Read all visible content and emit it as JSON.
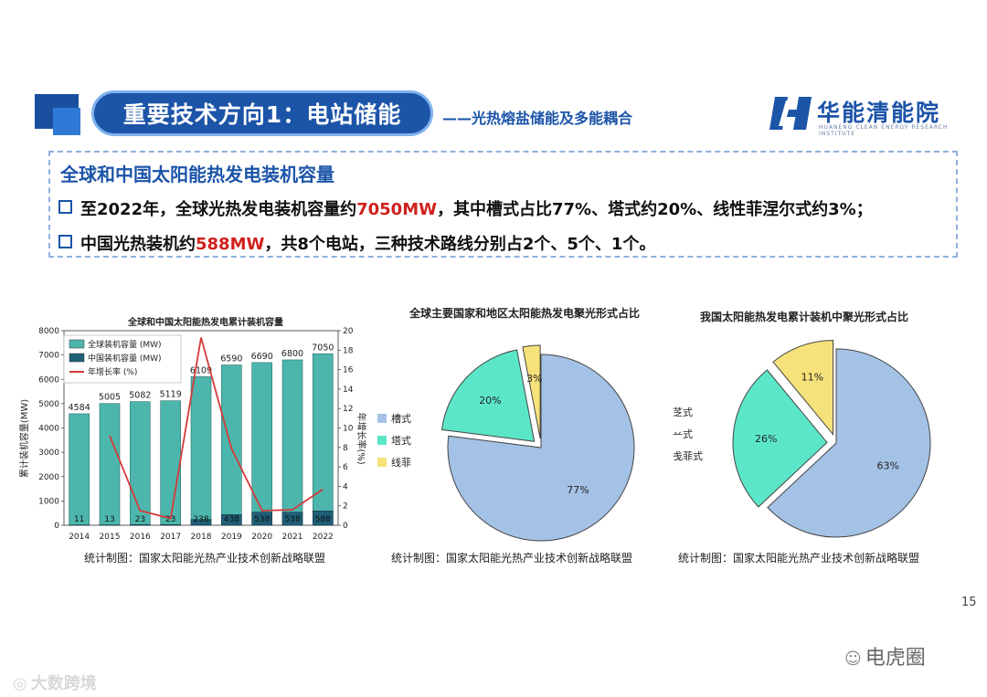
{
  "header": {
    "title": "重要技术方向1：电站储能",
    "subtitle": "——光热熔盐储能及多能耦合",
    "logo_cn": "华能清能院",
    "logo_en": "HUANENG CLEAN ENERGY RESEARCH INSTITUTE",
    "brand_color": "#1c54a8"
  },
  "infobox": {
    "title": "全球和中国太阳能热发电装机容量",
    "bullets": [
      {
        "pre": "至2022年，全球光热发电装机容量约",
        "highlight": "7050MW",
        "post": "，其中槽式占比77%、塔式约20%、线性菲涅尔式约3%；"
      },
      {
        "pre": "中国光热装机约",
        "highlight": "588MW",
        "post": "，共8个电站，三种技术路线分别占2个、5个、1个。"
      }
    ]
  },
  "chart_data": [
    {
      "type": "bar",
      "title": "全球和中国太阳能热发电累计装机容量",
      "categories": [
        "2014",
        "2015",
        "2016",
        "2017",
        "2018",
        "2019",
        "2020",
        "2021",
        "2022"
      ],
      "series": [
        {
          "name": "全球装机容量 (MW)",
          "values": [
            4584,
            5005,
            5082,
            5119,
            6109,
            6590,
            6690,
            6800,
            7050
          ],
          "color": "#4db6ac"
        },
        {
          "name": "中国装机容量 (MW)",
          "values": [
            11,
            13,
            23,
            23,
            238,
            438,
            538,
            538,
            588
          ],
          "color": "#1f5f78"
        },
        {
          "name": "年增长率 (%)",
          "type": "line",
          "axis": "right",
          "values": [
            null,
            9.2,
            1.5,
            0.7,
            19.3,
            7.9,
            1.5,
            1.6,
            3.7
          ],
          "color": "#d43a3a"
        }
      ],
      "ylabel": "累计装机容量(MW)",
      "y2label": "年增长率(%)",
      "ylim": [
        0,
        8000
      ],
      "y2lim": [
        0,
        20
      ],
      "yticks": [
        "0",
        "1000",
        "2000",
        "3000",
        "4000",
        "5000",
        "6000",
        "7000",
        "8000"
      ],
      "y2ticks": [
        "0",
        "2",
        "4",
        "6",
        "8",
        "10",
        "12",
        "14",
        "16",
        "18",
        "20"
      ],
      "global_labels": [
        "4584",
        "5005",
        "5082",
        "5119",
        "6109",
        "6590",
        "6690",
        "6800",
        "7050"
      ],
      "china_labels": [
        "11",
        "13",
        "23",
        "23",
        "238",
        "438",
        "538",
        "538",
        "588"
      ],
      "legend": "top-left",
      "source": "统计制图：国家太阳能光热产业技术创新战略联盟"
    },
    {
      "type": "pie",
      "title": "全球主要国家和地区太阳能热发电聚光形式占比",
      "labels": [
        "槽式",
        "塔式",
        "线菲"
      ],
      "values": [
        77,
        20,
        3
      ],
      "value_labels": [
        "77%",
        "20%",
        "3%"
      ],
      "colors": [
        "#a4c2e6",
        "#5ce6c8",
        "#f6e27a"
      ],
      "legend": "left",
      "source": "统计制图：国家太阳能光热产业技术创新战略联盟"
    },
    {
      "type": "pie",
      "title": "我国太阳能热发电累计装机中聚光形式占比",
      "labels": [
        "槽式",
        "塔式",
        "线菲式"
      ],
      "visible_labels": [
        "䒦式",
        "䒑式",
        "戋菲式"
      ],
      "values": [
        63,
        26,
        11
      ],
      "value_labels": [
        "63%",
        "26%",
        "11%"
      ],
      "colors": [
        "#a4c2e6",
        "#5ce6c8",
        "#f6e27a"
      ],
      "source": "统计制图：国家太阳能光热产业技术创新战略联盟"
    }
  ],
  "footer": {
    "page_number": "15",
    "watermark_right": "电虎圈",
    "watermark_left": "大数跨境"
  }
}
